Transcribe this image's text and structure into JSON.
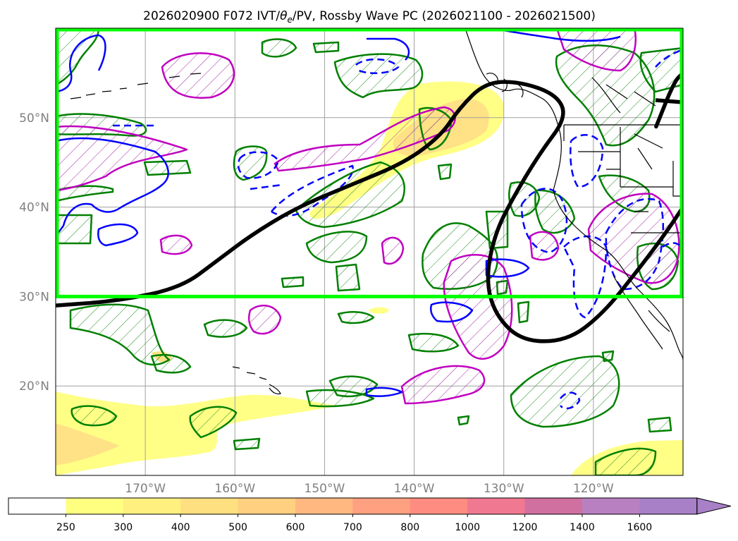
{
  "chart_data": {
    "type": "map-contour",
    "title": "2026020900 F072 IVT/θe/PV, Rossby Wave PC (2026021100 - 2026021500)",
    "title_parts": {
      "prefix": "2026020900 F072 IVT/",
      "theta": "θ",
      "sub": "e",
      "suffix": "/PV, Rossby Wave PC (2026021100 - 2026021500)"
    },
    "lon_range": [
      -180,
      -110
    ],
    "lat_range": [
      10,
      60
    ],
    "lon_ticks": [
      -170,
      -160,
      -150,
      -140,
      -130,
      -120
    ],
    "lon_tick_labels": [
      "170°W",
      "160°W",
      "150°W",
      "140°W",
      "130°W",
      "120°W"
    ],
    "lat_ticks": [
      20,
      30,
      40,
      50
    ],
    "lat_tick_labels": [
      "20°N",
      "30°N",
      "40°N",
      "50°N"
    ],
    "grid": true,
    "highlight_box": {
      "lon": [
        -180,
        -110
      ],
      "lat": [
        30,
        60
      ],
      "color": "#00ff00"
    },
    "colorbar": {
      "levels": [
        250,
        300,
        400,
        500,
        600,
        700,
        800,
        1000,
        1200,
        1400,
        1600
      ],
      "labels": [
        "250",
        "300",
        "400",
        "500",
        "600",
        "700",
        "800",
        "1000",
        "1200",
        "1400",
        "1600"
      ],
      "colors": [
        "#ffffff",
        "#ffff80",
        "#fff080",
        "#ffe080",
        "#ffd080",
        "#ffb880",
        "#ffa080",
        "#ff8c80",
        "#f07890",
        "#d070a0",
        "#b880c0",
        "#a880c8"
      ],
      "extend": "max"
    },
    "black_contour": [
      [
        -180,
        29
      ],
      [
        -173,
        29.5
      ],
      [
        -166,
        31
      ],
      [
        -162,
        34
      ],
      [
        -158,
        37
      ],
      [
        -153,
        40
      ],
      [
        -147,
        42.5
      ],
      [
        -141,
        45
      ],
      [
        -137,
        48
      ],
      [
        -135,
        51
      ],
      [
        -132,
        54
      ],
      [
        -128,
        54
      ],
      [
        -124,
        52.5
      ],
      [
        -123,
        50
      ],
      [
        -126,
        46
      ],
      [
        -129,
        41
      ],
      [
        -131,
        37
      ],
      [
        -132,
        32
      ],
      [
        -131,
        28
      ],
      [
        -128,
        25
      ],
      [
        -123,
        25
      ],
      [
        -119,
        28
      ],
      [
        -115,
        33
      ],
      [
        -112,
        37
      ],
      [
        -110,
        40
      ]
    ],
    "black_contour2": [
      [
        -113,
        49
      ],
      [
        -111,
        54
      ],
      [
        -110,
        55
      ]
    ]
  }
}
